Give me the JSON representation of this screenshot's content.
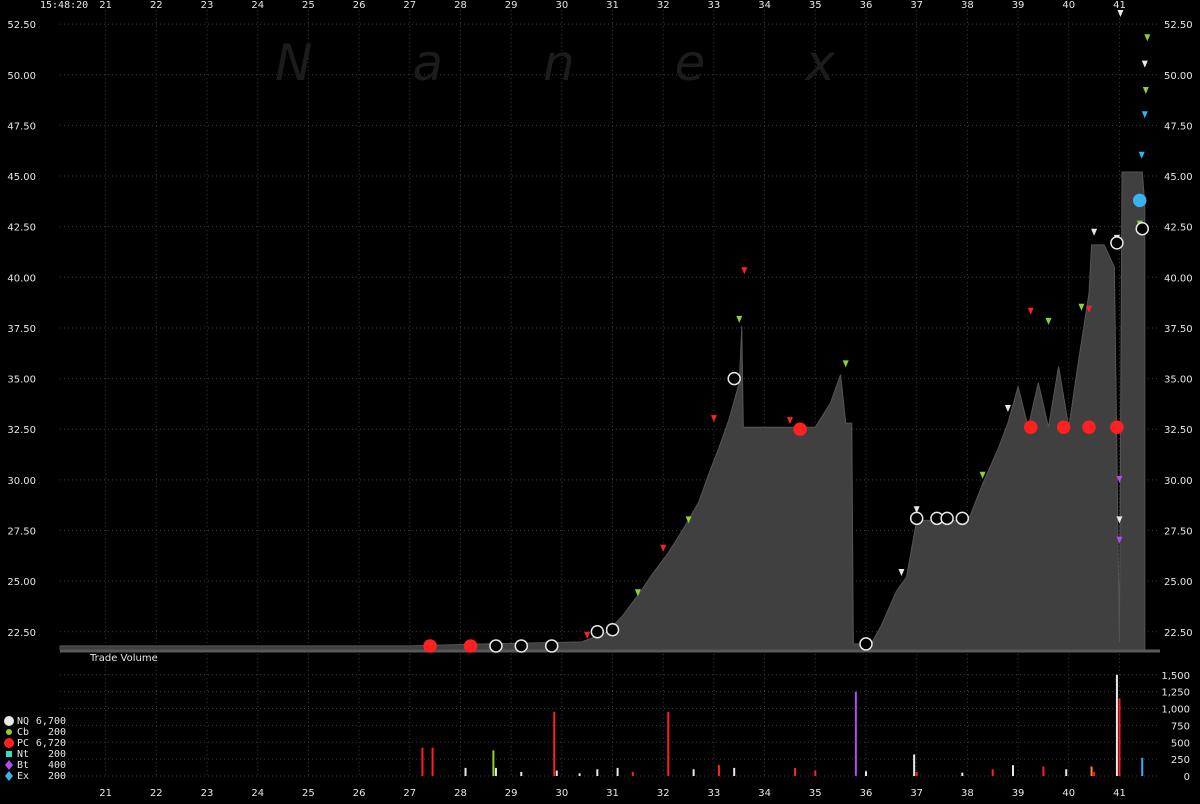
{
  "timestamp": "15:48:20",
  "watermark": "N  a  n  e  x",
  "volume_label": "Trade Volume",
  "colors": {
    "background": "#000000",
    "grid": "#3a3a3a",
    "price_fill": "#404040",
    "green": "#8fd12e",
    "red": "#ff2020",
    "white": "#e8e8e8",
    "purple": "#b04cf0",
    "blue": "#39b3ee",
    "pink": "#ff70b0",
    "orange": "#ff8a2a"
  },
  "legend": [
    {
      "code": "NQ",
      "value": "6,700",
      "color": "#e8e8e8",
      "shape": "circle"
    },
    {
      "code": "Cb",
      "value": "200",
      "color": "#8fd12e",
      "shape": "dot"
    },
    {
      "code": "PC",
      "value": "6,720",
      "color": "#ff2020",
      "shape": "circle"
    },
    {
      "code": "Nt",
      "value": "200",
      "color": "#35e0c0",
      "shape": "square"
    },
    {
      "code": "Bt",
      "value": "400",
      "color": "#b04cf0",
      "shape": "diamond"
    },
    {
      "code": "Ex",
      "value": "200",
      "color": "#39b3ee",
      "shape": "diamond"
    }
  ],
  "chart_data": {
    "type": "area",
    "x_unit": "minute",
    "x_ticks": [
      "21",
      "22",
      "23",
      "24",
      "25",
      "26",
      "27",
      "28",
      "29",
      "30",
      "31",
      "32",
      "33",
      "34",
      "35",
      "36",
      "37",
      "38",
      "39",
      "40",
      "41"
    ],
    "x_range": [
      20.1,
      41.8
    ],
    "price_axis": {
      "ticks": [
        "22.50",
        "25.00",
        "27.50",
        "30.00",
        "32.50",
        "35.00",
        "37.50",
        "40.00",
        "42.50",
        "45.00",
        "47.50",
        "50.00",
        "52.50"
      ],
      "range": [
        21.6,
        53.0
      ]
    },
    "volume_axis": {
      "ticks": [
        "0",
        "250",
        "500",
        "750",
        "1,000",
        "1,250",
        "1,500"
      ],
      "range": [
        0,
        1600
      ]
    },
    "price_series": [
      [
        20.1,
        21.8
      ],
      [
        27.0,
        21.8
      ],
      [
        28.5,
        21.9
      ],
      [
        30.4,
        22.0
      ],
      [
        30.9,
        22.5
      ],
      [
        31.2,
        23.3
      ],
      [
        31.5,
        24.3
      ],
      [
        31.8,
        25.4
      ],
      [
        32.1,
        26.4
      ],
      [
        32.4,
        27.6
      ],
      [
        32.7,
        28.9
      ],
      [
        32.9,
        30.3
      ],
      [
        33.1,
        31.6
      ],
      [
        33.3,
        33.0
      ],
      [
        33.5,
        34.8
      ],
      [
        33.55,
        37.6
      ],
      [
        33.58,
        32.6
      ],
      [
        35.0,
        32.6
      ],
      [
        35.3,
        33.8
      ],
      [
        35.5,
        35.2
      ],
      [
        35.6,
        32.8
      ],
      [
        35.72,
        32.8
      ],
      [
        35.75,
        21.9
      ],
      [
        36.1,
        21.9
      ],
      [
        36.3,
        22.8
      ],
      [
        36.6,
        24.5
      ],
      [
        36.8,
        25.2
      ],
      [
        37.0,
        28.0
      ],
      [
        37.2,
        28.0
      ],
      [
        37.8,
        28.0
      ],
      [
        38.05,
        28.2
      ],
      [
        38.3,
        29.8
      ],
      [
        38.6,
        31.5
      ],
      [
        38.8,
        32.8
      ],
      [
        39.0,
        34.6
      ],
      [
        39.2,
        32.6
      ],
      [
        39.4,
        34.8
      ],
      [
        39.6,
        32.6
      ],
      [
        39.8,
        35.6
      ],
      [
        40.0,
        32.6
      ],
      [
        40.2,
        36.0
      ],
      [
        40.4,
        39.2
      ],
      [
        40.45,
        41.6
      ],
      [
        40.7,
        41.6
      ],
      [
        40.9,
        40.5
      ],
      [
        41.0,
        22.0
      ],
      [
        41.05,
        45.2
      ],
      [
        41.45,
        45.2
      ],
      [
        41.5,
        43.6
      ]
    ],
    "quote_markers": [
      {
        "x": 33.5,
        "y": 37.9,
        "kind": "green"
      },
      {
        "x": 33.6,
        "y": 40.3,
        "kind": "red"
      },
      {
        "x": 35.6,
        "y": 35.7,
        "kind": "green"
      },
      {
        "x": 39.25,
        "y": 38.3,
        "kind": "red"
      },
      {
        "x": 39.6,
        "y": 37.8,
        "kind": "green"
      },
      {
        "x": 40.25,
        "y": 38.5,
        "kind": "green"
      },
      {
        "x": 40.4,
        "y": 38.4,
        "kind": "red"
      },
      {
        "x": 40.5,
        "y": 42.2,
        "kind": "white"
      },
      {
        "x": 41.52,
        "y": 49.2,
        "kind": "green"
      },
      {
        "x": 41.55,
        "y": 51.8,
        "kind": "green"
      },
      {
        "x": 41.5,
        "y": 50.5,
        "kind": "white"
      },
      {
        "x": 41.5,
        "y": 48.0,
        "kind": "blue"
      },
      {
        "x": 41.44,
        "y": 46.0,
        "kind": "blue"
      },
      {
        "x": 41.4,
        "y": 42.6,
        "kind": "green"
      },
      {
        "x": 30.5,
        "y": 22.3,
        "kind": "red"
      },
      {
        "x": 31.5,
        "y": 24.4,
        "kind": "green"
      },
      {
        "x": 32.0,
        "y": 26.6,
        "kind": "red"
      },
      {
        "x": 32.5,
        "y": 28.0,
        "kind": "green"
      },
      {
        "x": 33.0,
        "y": 33.0,
        "kind": "red"
      },
      {
        "x": 34.5,
        "y": 32.9,
        "kind": "red"
      },
      {
        "x": 37.0,
        "y": 28.5,
        "kind": "white"
      },
      {
        "x": 38.3,
        "y": 30.2,
        "kind": "green"
      },
      {
        "x": 38.8,
        "y": 33.5,
        "kind": "white"
      },
      {
        "x": 36.7,
        "y": 25.4,
        "kind": "white"
      },
      {
        "x": 40.95,
        "y": 41.9,
        "kind": "white"
      },
      {
        "x": 41.02,
        "y": 53.0,
        "kind": "white"
      },
      {
        "x": 41.0,
        "y": 28.0,
        "kind": "white"
      },
      {
        "x": 41.0,
        "y": 30.0,
        "kind": "purple"
      },
      {
        "x": 41.0,
        "y": 27.0,
        "kind": "purple"
      }
    ],
    "trade_markers": [
      {
        "x": 27.4,
        "y": 21.8,
        "kind": "red"
      },
      {
        "x": 28.2,
        "y": 21.8,
        "kind": "red"
      },
      {
        "x": 28.7,
        "y": 21.8,
        "kind": "white"
      },
      {
        "x": 29.2,
        "y": 21.8,
        "kind": "white"
      },
      {
        "x": 29.8,
        "y": 21.8,
        "kind": "white"
      },
      {
        "x": 30.7,
        "y": 22.5,
        "kind": "white"
      },
      {
        "x": 31.0,
        "y": 22.6,
        "kind": "white"
      },
      {
        "x": 33.4,
        "y": 35.0,
        "kind": "white"
      },
      {
        "x": 34.7,
        "y": 32.5,
        "kind": "red"
      },
      {
        "x": 36.0,
        "y": 21.9,
        "kind": "white"
      },
      {
        "x": 37.0,
        "y": 28.1,
        "kind": "white"
      },
      {
        "x": 37.4,
        "y": 28.1,
        "kind": "white"
      },
      {
        "x": 37.6,
        "y": 28.1,
        "kind": "white"
      },
      {
        "x": 37.9,
        "y": 28.1,
        "kind": "white"
      },
      {
        "x": 39.25,
        "y": 32.6,
        "kind": "red"
      },
      {
        "x": 39.9,
        "y": 32.6,
        "kind": "red"
      },
      {
        "x": 40.4,
        "y": 32.6,
        "kind": "red"
      },
      {
        "x": 40.95,
        "y": 32.6,
        "kind": "red"
      },
      {
        "x": 41.45,
        "y": 42.4,
        "kind": "white"
      },
      {
        "x": 40.95,
        "y": 41.7,
        "kind": "white"
      },
      {
        "x": 41.4,
        "y": 43.8,
        "kind": "blue"
      }
    ],
    "volume_bars": [
      {
        "x": 27.25,
        "v": 420,
        "kind": "red"
      },
      {
        "x": 27.45,
        "v": 420,
        "kind": "red"
      },
      {
        "x": 28.1,
        "v": 120,
        "kind": "white"
      },
      {
        "x": 28.65,
        "v": 380,
        "kind": "green"
      },
      {
        "x": 28.7,
        "v": 120,
        "kind": "white"
      },
      {
        "x": 29.2,
        "v": 60,
        "kind": "white"
      },
      {
        "x": 29.85,
        "v": 950,
        "kind": "red"
      },
      {
        "x": 29.9,
        "v": 80,
        "kind": "white"
      },
      {
        "x": 30.35,
        "v": 40,
        "kind": "white"
      },
      {
        "x": 30.7,
        "v": 100,
        "kind": "white"
      },
      {
        "x": 31.1,
        "v": 120,
        "kind": "white"
      },
      {
        "x": 31.4,
        "v": 60,
        "kind": "red"
      },
      {
        "x": 32.1,
        "v": 950,
        "kind": "red"
      },
      {
        "x": 32.6,
        "v": 100,
        "kind": "white"
      },
      {
        "x": 33.1,
        "v": 160,
        "kind": "red"
      },
      {
        "x": 33.4,
        "v": 120,
        "kind": "white"
      },
      {
        "x": 34.6,
        "v": 120,
        "kind": "red"
      },
      {
        "x": 35.0,
        "v": 80,
        "kind": "red"
      },
      {
        "x": 35.8,
        "v": 1250,
        "kind": "purple"
      },
      {
        "x": 36.0,
        "v": 70,
        "kind": "white"
      },
      {
        "x": 36.95,
        "v": 320,
        "kind": "white"
      },
      {
        "x": 37.0,
        "v": 60,
        "kind": "red"
      },
      {
        "x": 37.9,
        "v": 50,
        "kind": "white"
      },
      {
        "x": 38.5,
        "v": 100,
        "kind": "red"
      },
      {
        "x": 38.9,
        "v": 160,
        "kind": "white"
      },
      {
        "x": 39.5,
        "v": 140,
        "kind": "red"
      },
      {
        "x": 39.95,
        "v": 100,
        "kind": "white"
      },
      {
        "x": 40.45,
        "v": 140,
        "kind": "orange"
      },
      {
        "x": 40.5,
        "v": 60,
        "kind": "red"
      },
      {
        "x": 40.95,
        "v": 1500,
        "kind": "white"
      },
      {
        "x": 41.0,
        "v": 1150,
        "kind": "red"
      },
      {
        "x": 41.45,
        "v": 270,
        "kind": "blue"
      }
    ]
  }
}
